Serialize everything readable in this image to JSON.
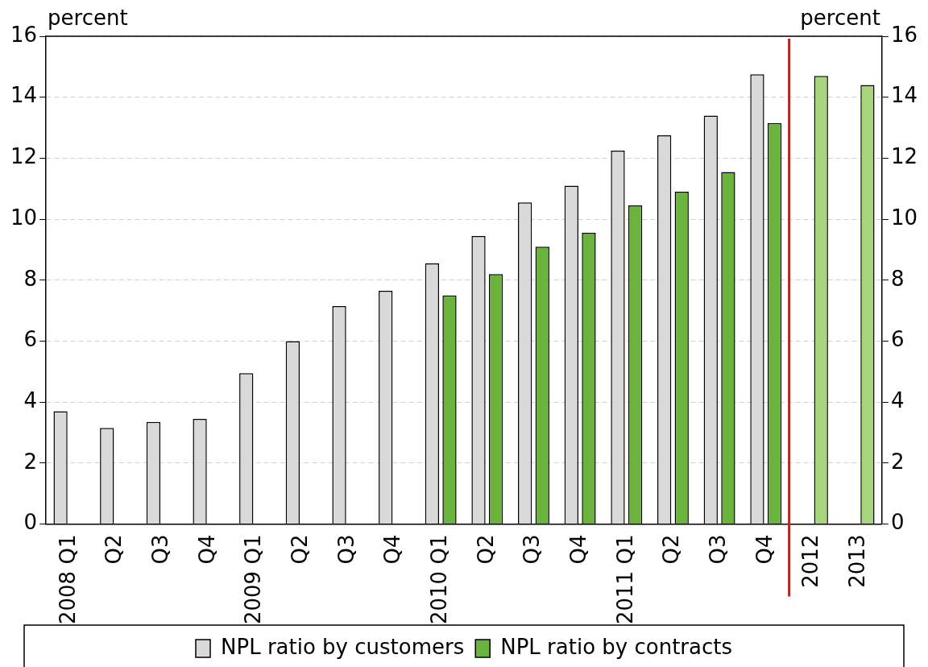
{
  "chart_data": {
    "type": "bar",
    "ylabel": "percent",
    "y2label": "percent",
    "categories": [
      "2008 Q1",
      "Q2",
      "Q3",
      "Q4",
      "2009 Q1",
      "Q2",
      "Q3",
      "Q4",
      "2010 Q1",
      "Q2",
      "Q3",
      "Q4",
      "2011 Q1",
      "Q2",
      "Q3",
      "Q4",
      "2012",
      "2013"
    ],
    "series": [
      {
        "name": "NPL ratio by customers",
        "color": "#d9d9d9",
        "values": [
          3.7,
          3.15,
          3.35,
          3.45,
          4.95,
          6.0,
          7.15,
          7.65,
          8.55,
          9.45,
          10.55,
          11.1,
          12.25,
          12.75,
          13.4,
          14.75,
          null,
          null
        ]
      },
      {
        "name": "NPL ratio by contracts",
        "color": "#6ab43e",
        "colors": [
          "#6ab43e",
          "#6ab43e",
          "#6ab43e",
          "#6ab43e",
          "#6ab43e",
          "#6ab43e",
          "#6ab43e",
          "#6ab43e",
          "#6ab43e",
          "#6ab43e",
          "#6ab43e",
          "#6ab43e",
          "#6ab43e",
          "#6ab43e",
          "#6ab43e",
          "#6ab43e",
          "#a6d57e",
          "#a6d57e"
        ],
        "values": [
          null,
          null,
          null,
          null,
          null,
          null,
          null,
          null,
          7.5,
          8.2,
          9.1,
          9.55,
          10.45,
          10.9,
          11.55,
          13.15,
          14.7,
          14.4
        ]
      }
    ],
    "ylim": [
      0,
      16
    ],
    "yticks": [
      0,
      2,
      4,
      6,
      8,
      10,
      12,
      14,
      16
    ],
    "y2lim": [
      0,
      16
    ],
    "y2ticks": [
      0,
      2,
      4,
      6,
      8,
      10,
      12,
      14,
      16
    ],
    "grid": "y",
    "legend": "bottom",
    "ref_lines": [
      {
        "axis": "x",
        "value": "2012",
        "color": "#b5261e"
      }
    ]
  }
}
